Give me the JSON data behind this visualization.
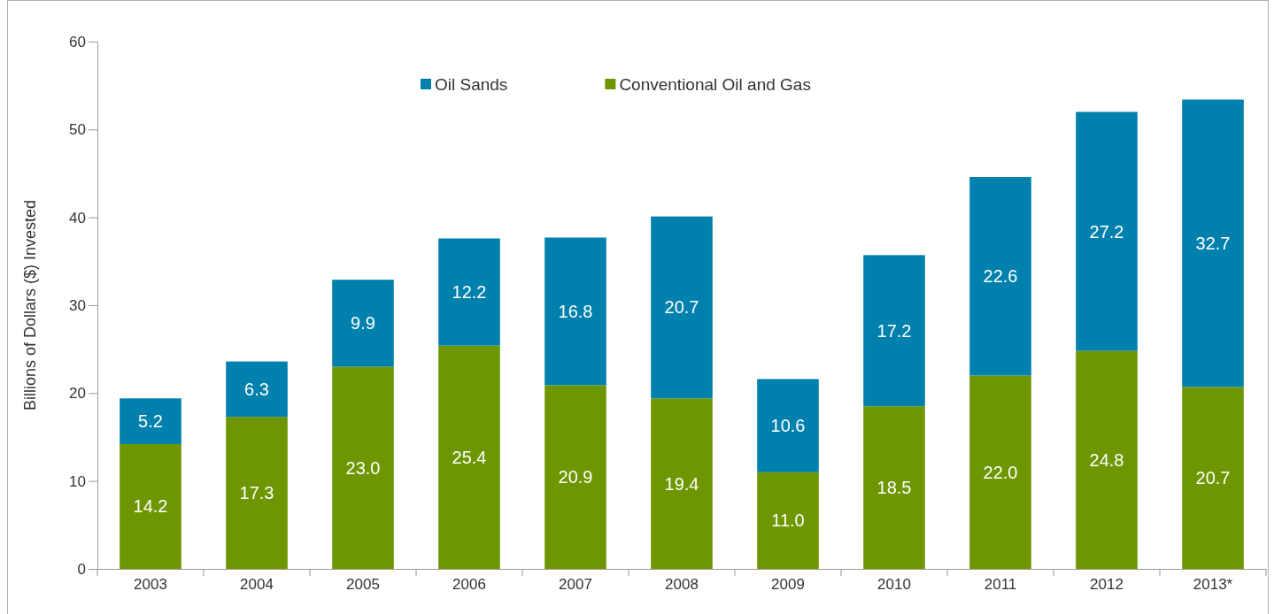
{
  "chart_data": {
    "type": "bar",
    "ylabel": "Billions of Dollars ($) Invested",
    "categories": [
      "2003",
      "2004",
      "2005",
      "2006",
      "2007",
      "2008",
      "2009",
      "2010",
      "2011",
      "2012",
      "2013*"
    ],
    "series": [
      {
        "name": "Conventional Oil and Gas",
        "color": "#6e9600",
        "values": [
          14.2,
          17.3,
          23.0,
          25.4,
          20.9,
          19.4,
          11.0,
          18.5,
          22.0,
          24.8,
          20.7
        ],
        "value_labels": [
          "14.2",
          "17.3",
          "23.0",
          "25.4",
          "20.9",
          "19.4",
          "11.0",
          "18.5",
          "22.0",
          "24.8",
          "20.7"
        ]
      },
      {
        "name": "Oil Sands",
        "color": "#0080ac",
        "values": [
          5.2,
          6.3,
          9.9,
          12.2,
          16.8,
          20.7,
          10.6,
          17.2,
          22.6,
          27.2,
          32.7
        ],
        "value_labels": [
          "5.2",
          "6.3",
          "9.9",
          "12.2",
          "16.8",
          "20.7",
          "10.6",
          "17.2",
          "22.6",
          "27.2",
          "32.7"
        ]
      }
    ],
    "stacked": true,
    "ylim": [
      0,
      60
    ],
    "yticks": [
      0,
      10,
      20,
      30,
      40,
      50,
      60
    ],
    "grid": false,
    "legend": "top"
  }
}
